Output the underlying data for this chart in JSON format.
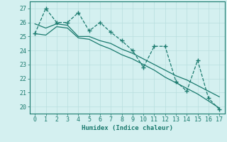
{
  "x": [
    0,
    1,
    2,
    3,
    4,
    5,
    6,
    7,
    8,
    9,
    10,
    11,
    12,
    13,
    14,
    15,
    16,
    17
  ],
  "y_main": [
    25.2,
    27.0,
    26.0,
    26.0,
    26.7,
    25.4,
    26.0,
    25.3,
    24.7,
    24.0,
    22.8,
    24.3,
    24.3,
    21.8,
    21.1,
    23.3,
    20.6,
    19.8
  ],
  "y_trend1": [
    25.9,
    25.6,
    25.9,
    25.8,
    25.0,
    25.0,
    24.7,
    24.5,
    24.1,
    23.8,
    23.4,
    23.0,
    22.6,
    22.2,
    21.9,
    21.5,
    21.1,
    20.7
  ],
  "y_trend2": [
    25.2,
    25.1,
    25.7,
    25.6,
    24.9,
    24.8,
    24.4,
    24.1,
    23.7,
    23.4,
    23.0,
    22.6,
    22.1,
    21.7,
    21.3,
    20.9,
    20.4,
    19.9
  ],
  "line_color": "#1a7a6e",
  "bg_color": "#d4f0f0",
  "grid_color": "#b8dede",
  "xlabel": "Humidex (Indice chaleur)",
  "xlim": [
    -0.5,
    17.5
  ],
  "ylim": [
    19.5,
    27.5
  ],
  "yticks": [
    20,
    21,
    22,
    23,
    24,
    25,
    26,
    27
  ],
  "xticks": [
    0,
    1,
    2,
    3,
    4,
    5,
    6,
    7,
    8,
    9,
    10,
    11,
    12,
    13,
    14,
    15,
    16,
    17
  ]
}
